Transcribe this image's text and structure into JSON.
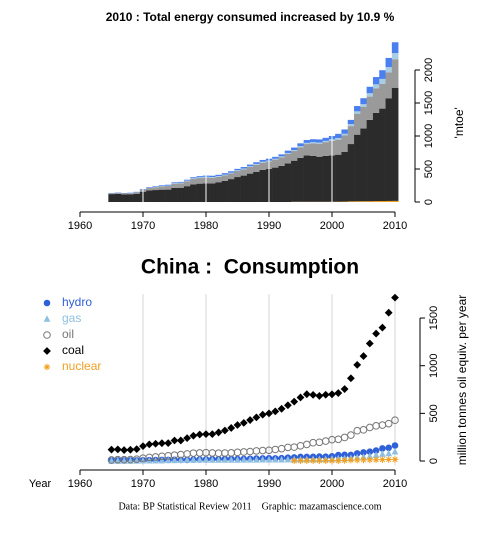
{
  "chart_data": [
    {
      "type": "area",
      "title": "2010 : Total energy consumed increased by 10.9 %",
      "ylabel": "'mtoe'",
      "x": [
        1965,
        1966,
        1967,
        1968,
        1969,
        1970,
        1971,
        1972,
        1973,
        1974,
        1975,
        1976,
        1977,
        1978,
        1979,
        1980,
        1981,
        1982,
        1983,
        1984,
        1985,
        1986,
        1987,
        1988,
        1989,
        1990,
        1991,
        1992,
        1993,
        1994,
        1995,
        1996,
        1997,
        1998,
        1999,
        2000,
        2001,
        2002,
        2003,
        2004,
        2005,
        2006,
        2007,
        2008,
        2009,
        2010
      ],
      "series": [
        {
          "color": "#f0a020",
          "values": [
            null,
            null,
            null,
            null,
            null,
            null,
            null,
            null,
            null,
            null,
            null,
            null,
            null,
            null,
            null,
            null,
            null,
            null,
            null,
            null,
            null,
            null,
            null,
            null,
            null,
            null,
            null,
            null,
            null,
            3,
            3,
            3,
            3,
            3,
            3,
            4,
            4,
            6,
            10,
            11,
            12,
            12,
            14,
            15,
            16,
            17
          ]
        },
        {
          "color": "#2b2b2b",
          "values": [
            120,
            122,
            115,
            118,
            125,
            156,
            175,
            181,
            187,
            188,
            215,
            216,
            240,
            265,
            278,
            282,
            282,
            300,
            320,
            347,
            378,
            400,
            430,
            458,
            486,
            500,
            521,
            548,
            585,
            623,
            667,
            701,
            694,
            683,
            695,
            700,
            713,
            755,
            868,
            1009,
            1101,
            1233,
            1337,
            1400,
            1556,
            1714
          ]
        },
        {
          "color": "#9a9a9a",
          "values": [
            11,
            14,
            14,
            15,
            20,
            30,
            38,
            43,
            50,
            55,
            62,
            68,
            75,
            83,
            85,
            88,
            85,
            82,
            84,
            86,
            91,
            95,
            100,
            106,
            110,
            113,
            121,
            130,
            143,
            146,
            160,
            174,
            192,
            197,
            209,
            224,
            228,
            247,
            272,
            318,
            327,
            352,
            369,
            377,
            392,
            428
          ]
        },
        {
          "color": "#a9cde3",
          "values": [
            1,
            1,
            1,
            1,
            2,
            3,
            3,
            4,
            5,
            7,
            8,
            9,
            11,
            12,
            13,
            13,
            12,
            11,
            11,
            11,
            12,
            13,
            13,
            13,
            14,
            14,
            14,
            14,
            15,
            15,
            16,
            18,
            18,
            18,
            19,
            22,
            25,
            26,
            30,
            36,
            42,
            51,
            63,
            73,
            80,
            98
          ]
        },
        {
          "color": "#4a7ff0",
          "values": [
            5,
            6,
            6,
            7,
            7,
            8,
            9,
            10,
            11,
            12,
            13,
            12,
            12,
            15,
            16,
            17,
            19,
            19,
            22,
            22,
            21,
            22,
            24,
            26,
            27,
            29,
            28,
            30,
            35,
            38,
            43,
            43,
            44,
            47,
            46,
            50,
            63,
            65,
            64,
            80,
            90,
            98,
            110,
            132,
            139,
            163
          ]
        }
      ],
      "xlim": [
        1960,
        2012
      ],
      "ylim": [
        -100,
        2500
      ],
      "xticks": [
        1960,
        1970,
        1980,
        1990,
        2000,
        2010
      ],
      "yticks": [
        0,
        500,
        1000,
        1500,
        2000
      ],
      "grid": true,
      "grid_color": "#ffffff"
    },
    {
      "type": "scatter",
      "title": "China :  Consumption",
      "xlabel": "Year",
      "ylabel": "million tonnes oil equiv. per year",
      "caption": "Data: BP Statistical Review 2011    Graphic: mazamascience.com",
      "x": [
        1965,
        1966,
        1967,
        1968,
        1969,
        1970,
        1971,
        1972,
        1973,
        1974,
        1975,
        1976,
        1977,
        1978,
        1979,
        1980,
        1981,
        1982,
        1983,
        1984,
        1985,
        1986,
        1987,
        1988,
        1989,
        1990,
        1991,
        1992,
        1993,
        1994,
        1995,
        1996,
        1997,
        1998,
        1999,
        2000,
        2001,
        2002,
        2003,
        2004,
        2005,
        2006,
        2007,
        2008,
        2009,
        2010
      ],
      "series": [
        {
          "name": "hydro",
          "color": "#3060d8",
          "marker": "circle",
          "values": [
            5,
            6,
            6,
            7,
            7,
            8,
            9,
            10,
            11,
            12,
            13,
            12,
            12,
            15,
            16,
            17,
            19,
            19,
            22,
            22,
            21,
            22,
            24,
            26,
            27,
            29,
            28,
            30,
            35,
            38,
            43,
            43,
            44,
            47,
            46,
            50,
            63,
            65,
            64,
            80,
            90,
            98,
            110,
            132,
            139,
            163
          ]
        },
        {
          "name": "gas",
          "color": "#8fbfe0",
          "marker": "triangle",
          "values": [
            1,
            1,
            1,
            1,
            2,
            3,
            3,
            4,
            5,
            7,
            8,
            9,
            11,
            12,
            13,
            13,
            12,
            11,
            11,
            11,
            12,
            13,
            13,
            13,
            14,
            14,
            14,
            14,
            15,
            15,
            16,
            18,
            18,
            18,
            19,
            22,
            25,
            26,
            30,
            36,
            42,
            51,
            63,
            73,
            80,
            98
          ]
        },
        {
          "name": "oil",
          "color": "#777777",
          "marker": "open-circle",
          "values": [
            11,
            14,
            14,
            15,
            20,
            30,
            38,
            43,
            50,
            55,
            62,
            68,
            75,
            83,
            85,
            88,
            85,
            82,
            84,
            86,
            91,
            95,
            100,
            106,
            110,
            113,
            121,
            130,
            143,
            146,
            160,
            174,
            192,
            197,
            209,
            224,
            228,
            247,
            272,
            318,
            327,
            352,
            369,
            377,
            392,
            428
          ]
        },
        {
          "name": "coal",
          "color": "#000000",
          "marker": "diamond",
          "values": [
            120,
            122,
            115,
            118,
            125,
            156,
            175,
            181,
            187,
            188,
            215,
            216,
            240,
            265,
            278,
            282,
            282,
            300,
            320,
            347,
            378,
            400,
            430,
            458,
            486,
            500,
            521,
            548,
            585,
            623,
            667,
            701,
            694,
            683,
            695,
            700,
            713,
            755,
            868,
            1009,
            1101,
            1233,
            1337,
            1400,
            1556,
            1714
          ]
        },
        {
          "name": "nuclear",
          "color": "#f0a020",
          "marker": "asterisk",
          "values": [
            null,
            null,
            null,
            null,
            null,
            null,
            null,
            null,
            null,
            null,
            null,
            null,
            null,
            null,
            null,
            null,
            null,
            null,
            null,
            null,
            null,
            null,
            null,
            null,
            null,
            null,
            null,
            null,
            null,
            3,
            3,
            3,
            3,
            3,
            3,
            4,
            4,
            6,
            10,
            11,
            12,
            12,
            14,
            15,
            16,
            17
          ]
        }
      ],
      "xlim": [
        1960,
        2012
      ],
      "ylim": [
        -50,
        1750
      ],
      "xticks": [
        1960,
        1970,
        1980,
        1990,
        2000,
        2010
      ],
      "yticks": [
        0,
        500,
        1000,
        1500
      ],
      "grid": true,
      "grid_color": "#d4d4d4",
      "legend": "top-left"
    }
  ]
}
